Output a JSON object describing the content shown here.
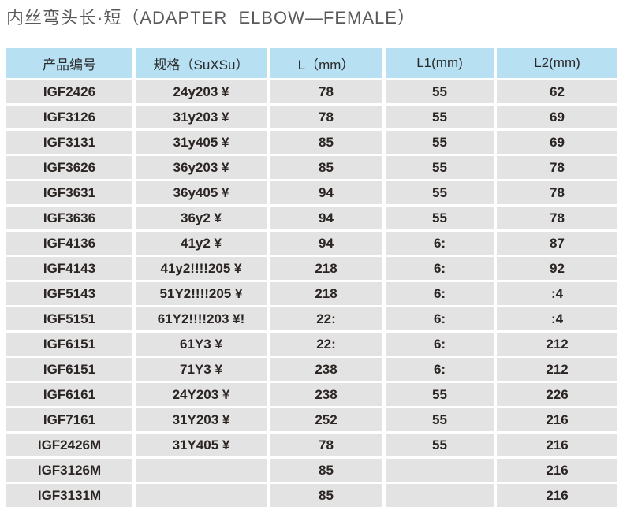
{
  "title": "内丝弯头长·短（ADAPTER  ELBOW—FEMALE）",
  "colors": {
    "header_bg": "#b7e0f2",
    "row_bg": "#e4e3e3",
    "cell_text": "#2a2422",
    "title_color": "#58595b"
  },
  "table": {
    "columns": [
      "产品编号",
      "规格（SuXSu）",
      "L（mm）",
      "L1(mm)",
      "L2(mm)"
    ],
    "rows": [
      [
        "IGF2426",
        "24y203 ¥",
        "78",
        "55",
        "62"
      ],
      [
        "IGF3126",
        "31y203 ¥",
        "78",
        "55",
        "69"
      ],
      [
        "IGF3131",
        "31y405 ¥",
        "85",
        "55",
        "69"
      ],
      [
        "IGF3626",
        "36y203 ¥",
        "85",
        "55",
        "78"
      ],
      [
        "IGF3631",
        "36y405 ¥",
        "94",
        "55",
        "78"
      ],
      [
        "IGF3636",
        "36y2 ¥",
        "94",
        "55",
        "78"
      ],
      [
        "IGF4136",
        "41y2 ¥",
        "94",
        "6:",
        "87"
      ],
      [
        "IGF4143",
        "41y2!!!!205 ¥",
        "218",
        "6:",
        "92"
      ],
      [
        "IGF5143",
        "51Y2!!!!205 ¥",
        "218",
        "6:",
        ":4"
      ],
      [
        "IGF5151",
        "61Y2!!!!203 ¥!",
        "22:",
        "6:",
        ":4"
      ],
      [
        "IGF6151",
        "61Y3 ¥",
        "22:",
        "6:",
        "212"
      ],
      [
        "IGF6151",
        "71Y3 ¥",
        "238",
        "6:",
        "212"
      ],
      [
        "IGF6161",
        "24Y203 ¥",
        "238",
        "55",
        "226"
      ],
      [
        "IGF7161",
        "31Y203 ¥",
        "252",
        "55",
        "216"
      ],
      [
        "IGF2426M",
        "31Y405 ¥",
        "78",
        "55",
        "216"
      ],
      [
        "IGF3126M",
        "",
        "85",
        "",
        "216"
      ],
      [
        "IGF3131M",
        "",
        "85",
        "",
        "216"
      ]
    ]
  }
}
